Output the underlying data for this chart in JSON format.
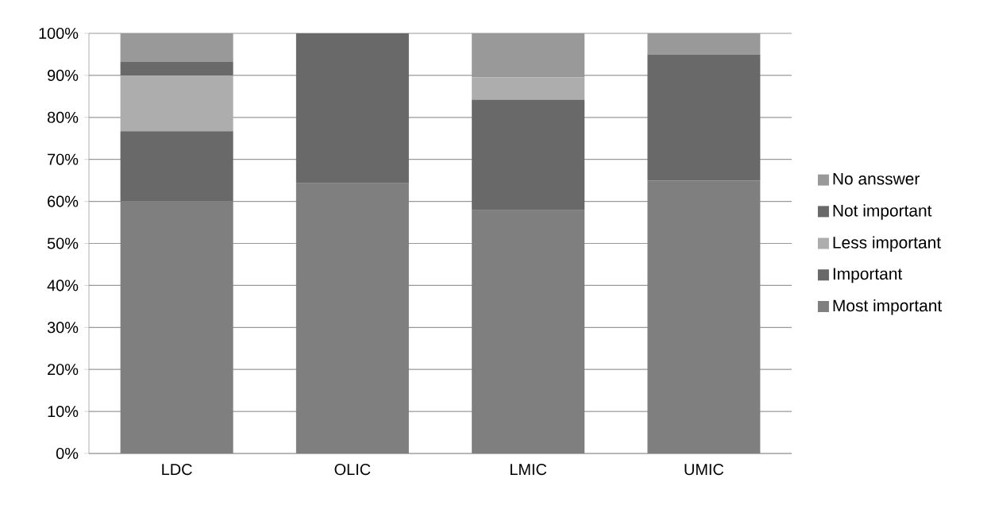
{
  "chart_data": {
    "type": "bar",
    "stacked": true,
    "categories": [
      "LDC",
      "OLIC",
      "LMIC",
      "UMIC"
    ],
    "series": [
      {
        "name": "Most important",
        "color": "#7f7f7f",
        "values": [
          60,
          64.3,
          57.9,
          65
        ]
      },
      {
        "name": "Important",
        "color": "#696969",
        "values": [
          16.7,
          35.7,
          26.3,
          30
        ]
      },
      {
        "name": "Less important",
        "color": "#adadad",
        "values": [
          13.3,
          0,
          5.3,
          0
        ]
      },
      {
        "name": "Not important",
        "color": "#696969",
        "values": [
          3.3,
          0,
          0,
          0
        ]
      },
      {
        "name": "No ansswer",
        "color": "#999999",
        "values": [
          6.7,
          0,
          10.5,
          5
        ]
      }
    ],
    "ylim": [
      0,
      100
    ],
    "yticks": [
      {
        "value": 0,
        "label": "0%"
      },
      {
        "value": 10,
        "label": "10%"
      },
      {
        "value": 20,
        "label": "20%"
      },
      {
        "value": 30,
        "label": "30%"
      },
      {
        "value": 40,
        "label": "40%"
      },
      {
        "value": 50,
        "label": "50%"
      },
      {
        "value": 60,
        "label": "60%"
      },
      {
        "value": 70,
        "label": "70%"
      },
      {
        "value": 80,
        "label": "80%"
      },
      {
        "value": 90,
        "label": "90%"
      },
      {
        "value": 100,
        "label": "100%"
      }
    ],
    "grid": "y",
    "legend": "right"
  }
}
